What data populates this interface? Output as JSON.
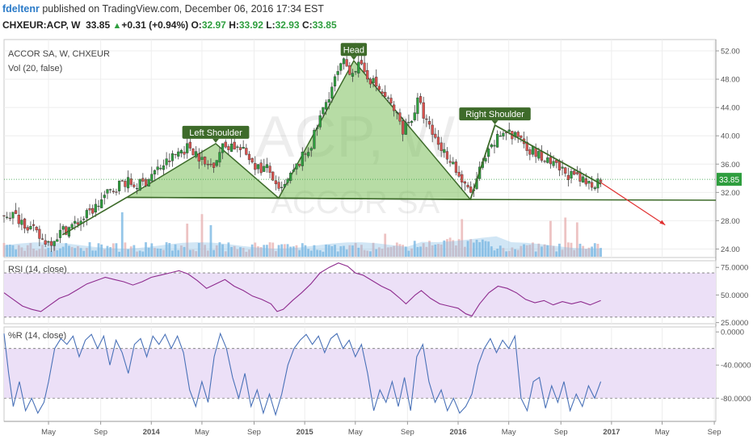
{
  "header": {
    "author": "fdeltenr",
    "published": " published on TradingView.com, December 06, 2016 17:34 EST",
    "symbol": "CHXEUR:ACP, W",
    "last": "33.85",
    "up_icon": "up-triangle-icon",
    "change": "+0.31 (+0.94%)",
    "o_label": "O:",
    "o_value": "32.97",
    "h_label": "H:",
    "h_value": "33.92",
    "l_label": "L:",
    "l_value": "32.93",
    "c_label": "C:",
    "c_value": "33.85"
  },
  "colors": {
    "up": "#2e9e3e",
    "down": "#d9534f",
    "candle_outline": "#333333",
    "pattern_fill": "#7bc05b",
    "pattern_line": "#3d6b2a",
    "rsi_line": "#8e2b8e",
    "wr_line": "#4a72b8",
    "osc_band": "#ece0f7",
    "volume": "#7ab8e3",
    "volume_down": "#e8b4b4",
    "projection": "#e03030",
    "annotation_bg": "#3e6b2a"
  },
  "chart_data": [
    {
      "type": "candlestick",
      "title": "ACCOR SA, W, CHXEUR",
      "watermark_symbol": "ACP, W",
      "watermark_name": "ACCOR SA",
      "pane_label": "ACCOR SA, W, CHXEUR",
      "ylim": [
        22.8,
        53.6
      ],
      "y_ticks": [
        "52.00",
        "48.00",
        "44.00",
        "40.00",
        "36.00",
        "32.00",
        "28.00",
        "24.00"
      ],
      "y_tick_values": [
        52,
        48,
        44,
        40,
        36,
        32,
        28,
        24
      ],
      "last_price_label": "33.85",
      "last_price": 33.85,
      "x_ticks": [
        "May",
        "Sep",
        "2014",
        "May",
        "Sep",
        "2015",
        "May",
        "Sep",
        "2016",
        "May",
        "Sep",
        "2017",
        "May",
        "Sep"
      ],
      "x_tick_values": [
        2013.33,
        2013.67,
        2014.0,
        2014.33,
        2014.67,
        2015.0,
        2015.33,
        2015.67,
        2016.0,
        2016.33,
        2016.67,
        2017.0,
        2017.33,
        2017.67
      ],
      "xlim": [
        2013.04,
        2017.68
      ],
      "close_path": [
        [
          2013.04,
          29.0
        ],
        [
          2013.1,
          28.8
        ],
        [
          2013.16,
          28.0
        ],
        [
          2013.22,
          26.8
        ],
        [
          2013.28,
          25.4
        ],
        [
          2013.33,
          25.0
        ],
        [
          2013.37,
          25.6
        ],
        [
          2013.42,
          26.6
        ],
        [
          2013.48,
          27.2
        ],
        [
          2013.56,
          28.4
        ],
        [
          2013.64,
          30.0
        ],
        [
          2013.7,
          31.5
        ],
        [
          2013.76,
          32.6
        ],
        [
          2013.82,
          33.6
        ],
        [
          2013.9,
          33.0
        ],
        [
          2013.95,
          33.3
        ],
        [
          2014.0,
          34.5
        ],
        [
          2014.06,
          35.6
        ],
        [
          2014.12,
          36.6
        ],
        [
          2014.18,
          37.8
        ],
        [
          2014.25,
          38.5
        ],
        [
          2014.3,
          37.5
        ],
        [
          2014.35,
          35.8
        ],
        [
          2014.4,
          36.0
        ],
        [
          2014.46,
          38.3
        ],
        [
          2014.52,
          38.8
        ],
        [
          2014.58,
          38.0
        ],
        [
          2014.64,
          37.0
        ],
        [
          2014.7,
          35.3
        ],
        [
          2014.75,
          35.5
        ],
        [
          2014.79,
          34.3
        ],
        [
          2014.82,
          31.8
        ],
        [
          2014.86,
          32.5
        ],
        [
          2014.92,
          34.6
        ],
        [
          2014.98,
          36.8
        ],
        [
          2015.04,
          38.6
        ],
        [
          2015.1,
          42.5
        ],
        [
          2015.16,
          46.0
        ],
        [
          2015.21,
          48.5
        ],
        [
          2015.25,
          50.3
        ],
        [
          2015.3,
          49.2
        ],
        [
          2015.35,
          49.8
        ],
        [
          2015.4,
          48.8
        ],
        [
          2015.46,
          47.2
        ],
        [
          2015.52,
          45.6
        ],
        [
          2015.58,
          43.8
        ],
        [
          2015.64,
          41.0
        ],
        [
          2015.7,
          42.6
        ],
        [
          2015.74,
          45.0
        ],
        [
          2015.79,
          42.0
        ],
        [
          2015.84,
          40.0
        ],
        [
          2015.9,
          38.0
        ],
        [
          2015.96,
          36.5
        ],
        [
          2016.0,
          34.5
        ],
        [
          2016.05,
          32.5
        ],
        [
          2016.09,
          31.8
        ],
        [
          2016.14,
          35.0
        ],
        [
          2016.2,
          37.5
        ],
        [
          2016.26,
          39.8
        ],
        [
          2016.32,
          41.0
        ],
        [
          2016.36,
          39.5
        ],
        [
          2016.4,
          40.2
        ],
        [
          2016.46,
          38.3
        ],
        [
          2016.52,
          37.3
        ],
        [
          2016.58,
          36.2
        ],
        [
          2016.64,
          35.5
        ],
        [
          2016.7,
          34.8
        ],
        [
          2016.76,
          34.0
        ],
        [
          2016.82,
          33.4
        ],
        [
          2016.87,
          33.2
        ],
        [
          2016.93,
          33.85
        ]
      ],
      "pattern": {
        "neckline": [
          [
            2013.84,
            31.3
          ],
          [
            2014.83,
            31.2
          ],
          [
            2016.08,
            31.0
          ],
          [
            2017.68,
            30.9
          ]
        ],
        "left_shoulder": [
          [
            2013.84,
            31.3
          ],
          [
            2014.42,
            38.9
          ],
          [
            2014.83,
            31.2
          ]
        ],
        "head": [
          [
            2014.83,
            31.2
          ],
          [
            2015.32,
            50.6
          ],
          [
            2016.08,
            31.0
          ]
        ],
        "right_shoulder_trend": [
          [
            2016.08,
            31.0
          ],
          [
            2016.24,
            41.5
          ],
          [
            2016.93,
            33.2
          ]
        ],
        "uptrend": [
          [
            2013.42,
            26.0
          ],
          [
            2013.84,
            31.3
          ]
        ],
        "projection": [
          [
            2016.93,
            33.4
          ],
          [
            2017.35,
            27.4
          ]
        ],
        "labels": [
          {
            "text": "Left Shoulder",
            "x": 2014.42,
            "y": 38.9
          },
          {
            "text": "Head",
            "x": 2015.32,
            "y": 50.6
          },
          {
            "text": "Right Shoulder",
            "x": 2016.24,
            "y": 41.5
          }
        ]
      }
    },
    {
      "type": "line",
      "name": "Vol (20, false)",
      "pane_label": "Vol (20, false)",
      "note": "volume histogram at bottom of price pane"
    },
    {
      "type": "line",
      "name": "RSI (14, close)",
      "pane_label": "RSI (14, close)",
      "ylim": [
        24.0,
        81.0
      ],
      "y_ticks": [
        "75.0000",
        "50.0000",
        "25.0000"
      ],
      "y_tick_values": [
        75,
        50,
        25
      ],
      "band": [
        30,
        70
      ],
      "path": [
        [
          2013.04,
          52
        ],
        [
          2013.1,
          46
        ],
        [
          2013.16,
          40
        ],
        [
          2013.22,
          37
        ],
        [
          2013.28,
          35
        ],
        [
          2013.33,
          40
        ],
        [
          2013.4,
          47
        ],
        [
          2013.46,
          50
        ],
        [
          2013.52,
          55
        ],
        [
          2013.58,
          60
        ],
        [
          2013.64,
          63
        ],
        [
          2013.7,
          66
        ],
        [
          2013.76,
          64
        ],
        [
          2013.82,
          62
        ],
        [
          2013.88,
          59
        ],
        [
          2013.94,
          62
        ],
        [
          2014.0,
          66
        ],
        [
          2014.06,
          68
        ],
        [
          2014.12,
          70
        ],
        [
          2014.18,
          72
        ],
        [
          2014.24,
          69
        ],
        [
          2014.3,
          63
        ],
        [
          2014.36,
          56
        ],
        [
          2014.42,
          60
        ],
        [
          2014.48,
          64
        ],
        [
          2014.54,
          58
        ],
        [
          2014.6,
          54
        ],
        [
          2014.66,
          49
        ],
        [
          2014.72,
          46
        ],
        [
          2014.78,
          42
        ],
        [
          2014.82,
          35
        ],
        [
          2014.86,
          37
        ],
        [
          2014.92,
          45
        ],
        [
          2014.98,
          52
        ],
        [
          2015.04,
          60
        ],
        [
          2015.1,
          70
        ],
        [
          2015.16,
          75
        ],
        [
          2015.22,
          79
        ],
        [
          2015.28,
          76
        ],
        [
          2015.33,
          70
        ],
        [
          2015.38,
          68
        ],
        [
          2015.44,
          63
        ],
        [
          2015.5,
          58
        ],
        [
          2015.56,
          54
        ],
        [
          2015.62,
          47
        ],
        [
          2015.66,
          42
        ],
        [
          2015.72,
          50
        ],
        [
          2015.76,
          54
        ],
        [
          2015.82,
          47
        ],
        [
          2015.88,
          42
        ],
        [
          2015.94,
          40
        ],
        [
          2016.0,
          38
        ],
        [
          2016.05,
          33
        ],
        [
          2016.09,
          31
        ],
        [
          2016.14,
          42
        ],
        [
          2016.2,
          52
        ],
        [
          2016.26,
          58
        ],
        [
          2016.32,
          56
        ],
        [
          2016.38,
          52
        ],
        [
          2016.44,
          46
        ],
        [
          2016.5,
          43
        ],
        [
          2016.56,
          45
        ],
        [
          2016.62,
          41
        ],
        [
          2016.68,
          44
        ],
        [
          2016.74,
          42
        ],
        [
          2016.8,
          44
        ],
        [
          2016.86,
          41
        ],
        [
          2016.93,
          45
        ]
      ]
    },
    {
      "type": "line",
      "name": "%R (14, close)",
      "pane_label": "%R (14, close)",
      "ylim": [
        -108,
        6
      ],
      "y_ticks": [
        "0.0000",
        "-40.0000",
        "-80.0000"
      ],
      "y_tick_values": [
        0,
        -40,
        -80
      ],
      "band": [
        -20,
        -80
      ],
      "path": [
        [
          2013.04,
          -2
        ],
        [
          2013.07,
          -50
        ],
        [
          2013.1,
          -90
        ],
        [
          2013.14,
          -60
        ],
        [
          2013.18,
          -95
        ],
        [
          2013.22,
          -80
        ],
        [
          2013.26,
          -98
        ],
        [
          2013.3,
          -85
        ],
        [
          2013.33,
          -60
        ],
        [
          2013.37,
          -20
        ],
        [
          2013.41,
          -8
        ],
        [
          2013.45,
          -15
        ],
        [
          2013.49,
          -5
        ],
        [
          2013.53,
          -30
        ],
        [
          2013.57,
          -10
        ],
        [
          2013.61,
          -3
        ],
        [
          2013.65,
          -20
        ],
        [
          2013.69,
          -5
        ],
        [
          2013.73,
          -40
        ],
        [
          2013.77,
          -10
        ],
        [
          2013.81,
          -25
        ],
        [
          2013.85,
          -50
        ],
        [
          2013.89,
          -15
        ],
        [
          2013.93,
          -8
        ],
        [
          2013.97,
          -30
        ],
        [
          2014.01,
          -5
        ],
        [
          2014.05,
          -15
        ],
        [
          2014.09,
          -3
        ],
        [
          2014.13,
          -20
        ],
        [
          2014.17,
          -5
        ],
        [
          2014.21,
          -25
        ],
        [
          2014.25,
          -70
        ],
        [
          2014.29,
          -90
        ],
        [
          2014.33,
          -60
        ],
        [
          2014.37,
          -85
        ],
        [
          2014.41,
          -30
        ],
        [
          2014.45,
          -2
        ],
        [
          2014.49,
          -20
        ],
        [
          2014.53,
          -55
        ],
        [
          2014.57,
          -80
        ],
        [
          2014.61,
          -50
        ],
        [
          2014.65,
          -90
        ],
        [
          2014.69,
          -70
        ],
        [
          2014.73,
          -98
        ],
        [
          2014.77,
          -75
        ],
        [
          2014.81,
          -100
        ],
        [
          2014.85,
          -75
        ],
        [
          2014.89,
          -40
        ],
        [
          2014.93,
          -20
        ],
        [
          2014.97,
          -10
        ],
        [
          2015.01,
          -3
        ],
        [
          2015.05,
          -15
        ],
        [
          2015.09,
          -5
        ],
        [
          2015.13,
          -25
        ],
        [
          2015.17,
          -8
        ],
        [
          2015.21,
          -2
        ],
        [
          2015.25,
          -20
        ],
        [
          2015.29,
          -10
        ],
        [
          2015.33,
          -30
        ],
        [
          2015.37,
          -15
        ],
        [
          2015.41,
          -50
        ],
        [
          2015.45,
          -95
        ],
        [
          2015.49,
          -70
        ],
        [
          2015.53,
          -85
        ],
        [
          2015.57,
          -60
        ],
        [
          2015.61,
          -90
        ],
        [
          2015.65,
          -55
        ],
        [
          2015.69,
          -95
        ],
        [
          2015.73,
          -30
        ],
        [
          2015.77,
          -15
        ],
        [
          2015.81,
          -60
        ],
        [
          2015.85,
          -85
        ],
        [
          2015.89,
          -70
        ],
        [
          2015.93,
          -95
        ],
        [
          2015.97,
          -80
        ],
        [
          2016.01,
          -98
        ],
        [
          2016.05,
          -90
        ],
        [
          2016.09,
          -75
        ],
        [
          2016.13,
          -40
        ],
        [
          2016.17,
          -20
        ],
        [
          2016.21,
          -8
        ],
        [
          2016.25,
          -25
        ],
        [
          2016.29,
          -10
        ],
        [
          2016.33,
          -20
        ],
        [
          2016.37,
          -5
        ],
        [
          2016.41,
          -80
        ],
        [
          2016.45,
          -95
        ],
        [
          2016.49,
          -60
        ],
        [
          2016.53,
          -55
        ],
        [
          2016.57,
          -92
        ],
        [
          2016.61,
          -65
        ],
        [
          2016.65,
          -85
        ],
        [
          2016.69,
          -60
        ],
        [
          2016.73,
          -95
        ],
        [
          2016.77,
          -75
        ],
        [
          2016.81,
          -90
        ],
        [
          2016.85,
          -65
        ],
        [
          2016.89,
          -80
        ],
        [
          2016.93,
          -60
        ]
      ]
    }
  ]
}
